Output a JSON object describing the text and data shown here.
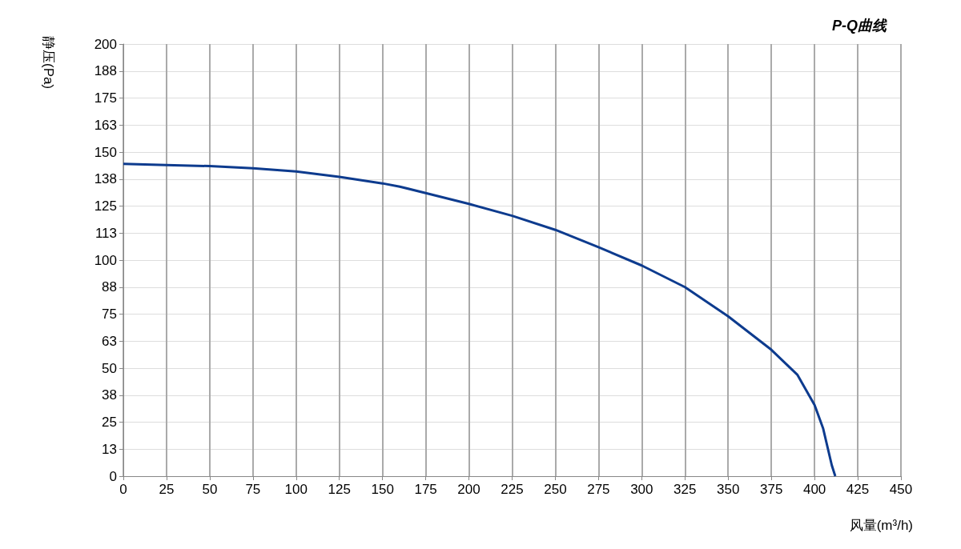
{
  "chart_data": {
    "type": "line",
    "title": "P-Q曲线",
    "xlabel": "风量(m³/h)",
    "ylabel": "静压(Pa)",
    "series": [
      {
        "color": "#0d3b8e",
        "x": [
          0,
          25,
          50,
          75,
          100,
          125,
          150,
          160,
          175,
          200,
          225,
          250,
          275,
          300,
          325,
          350,
          375,
          390,
          400,
          405,
          410,
          412
        ],
        "values": [
          144.5,
          144,
          143.5,
          142.5,
          141,
          138.5,
          135.5,
          134,
          131,
          126,
          120.5,
          114,
          106,
          97.5,
          87.5,
          74,
          58.5,
          47,
          33,
          22,
          5,
          0
        ]
      }
    ],
    "xlim": [
      0,
      450
    ],
    "xticks": [
      0,
      25,
      50,
      75,
      100,
      125,
      150,
      175,
      200,
      225,
      250,
      275,
      300,
      325,
      350,
      375,
      400,
      425,
      450
    ],
    "ylim": [
      0,
      200
    ],
    "yticks": [
      0,
      {
        "value": 12.5,
        "label": "13"
      },
      25,
      {
        "value": 37.5,
        "label": "38"
      },
      50,
      {
        "value": 62.5,
        "label": "63"
      },
      75,
      {
        "value": 87.5,
        "label": "88"
      },
      100,
      {
        "value": 112.5,
        "label": "113"
      },
      125,
      {
        "value": 137.5,
        "label": "138"
      },
      150,
      {
        "value": 162.5,
        "label": "163"
      },
      175,
      {
        "value": 187.5,
        "label": "188"
      },
      200
    ],
    "grid": true,
    "marker": "none",
    "line_style": "solid"
  }
}
